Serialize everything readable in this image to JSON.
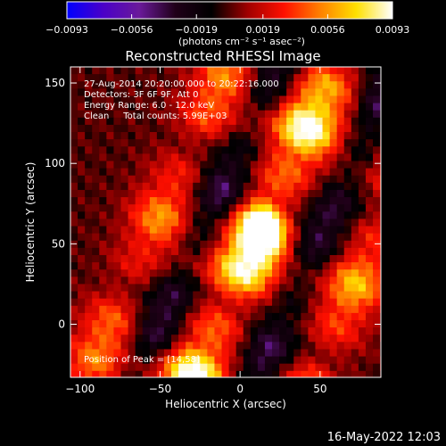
{
  "chart_data": {
    "type": "heatmap",
    "title": "Reconstructed RHESSI Image",
    "xlabel": "Heliocentric X (arcsec)",
    "ylabel": "Heliocentric Y (arcsec)",
    "xlim": [
      -106,
      88
    ],
    "ylim": [
      -33,
      160
    ],
    "x_ticks": [
      -100,
      -50,
      0,
      50
    ],
    "y_ticks": [
      0,
      50,
      100,
      150
    ],
    "x_tick_labels": [
      "−100",
      "−50",
      "0",
      "50"
    ],
    "y_tick_labels": [
      "0",
      "50",
      "100",
      "150"
    ],
    "colorbar": {
      "range": [
        -0.0093,
        0.0093
      ],
      "ticks": [
        -0.0093,
        -0.0056,
        -0.0019,
        0.0019,
        0.0056,
        0.0093
      ],
      "tick_labels": [
        "−0.0093",
        "−0.0056",
        "−0.0019",
        "0.0019",
        "0.0056",
        "0.0093"
      ],
      "units_label": "(photons cm⁻² s⁻¹ asec⁻²)",
      "colors": [
        "#0000ff",
        "#4a00c8",
        "#6a1a9a",
        "#200018",
        "#000000",
        "#a00000",
        "#ff1000",
        "#ff8000",
        "#ffe000",
        "#ffffff"
      ]
    },
    "annotations": [
      "27-Aug-2014 20:20:00.000 to 20:22:16.000",
      "Detectors: 3F 6F 9F, Att 0",
      "Energy Range: 6.0 - 12.0 keV",
      "Clean     Total counts: 5.99E+03"
    ],
    "peak_label": "Position of Peak = [14,58]",
    "peak": [
      14,
      58
    ],
    "peak_value": 0.0093,
    "features": [
      {
        "kind": "bright_ridge",
        "x0": -95,
        "x1": -30,
        "width": 22,
        "intensity": 0.0052
      },
      {
        "kind": "bright_ridge",
        "x0": -30,
        "x1": 55,
        "width": 24,
        "intensity": 0.0093
      },
      {
        "kind": "bright_ridge",
        "x0": 45,
        "x1": 120,
        "width": 22,
        "intensity": 0.006
      },
      {
        "kind": "dark_trough",
        "x0": -65,
        "x1": 5,
        "width": 18,
        "intensity": -0.0045
      },
      {
        "kind": "dark_trough",
        "x0": 10,
        "x1": 90,
        "width": 18,
        "intensity": -0.004
      }
    ]
  },
  "footer": {
    "timestamp": "16-May-2022 12:03"
  }
}
